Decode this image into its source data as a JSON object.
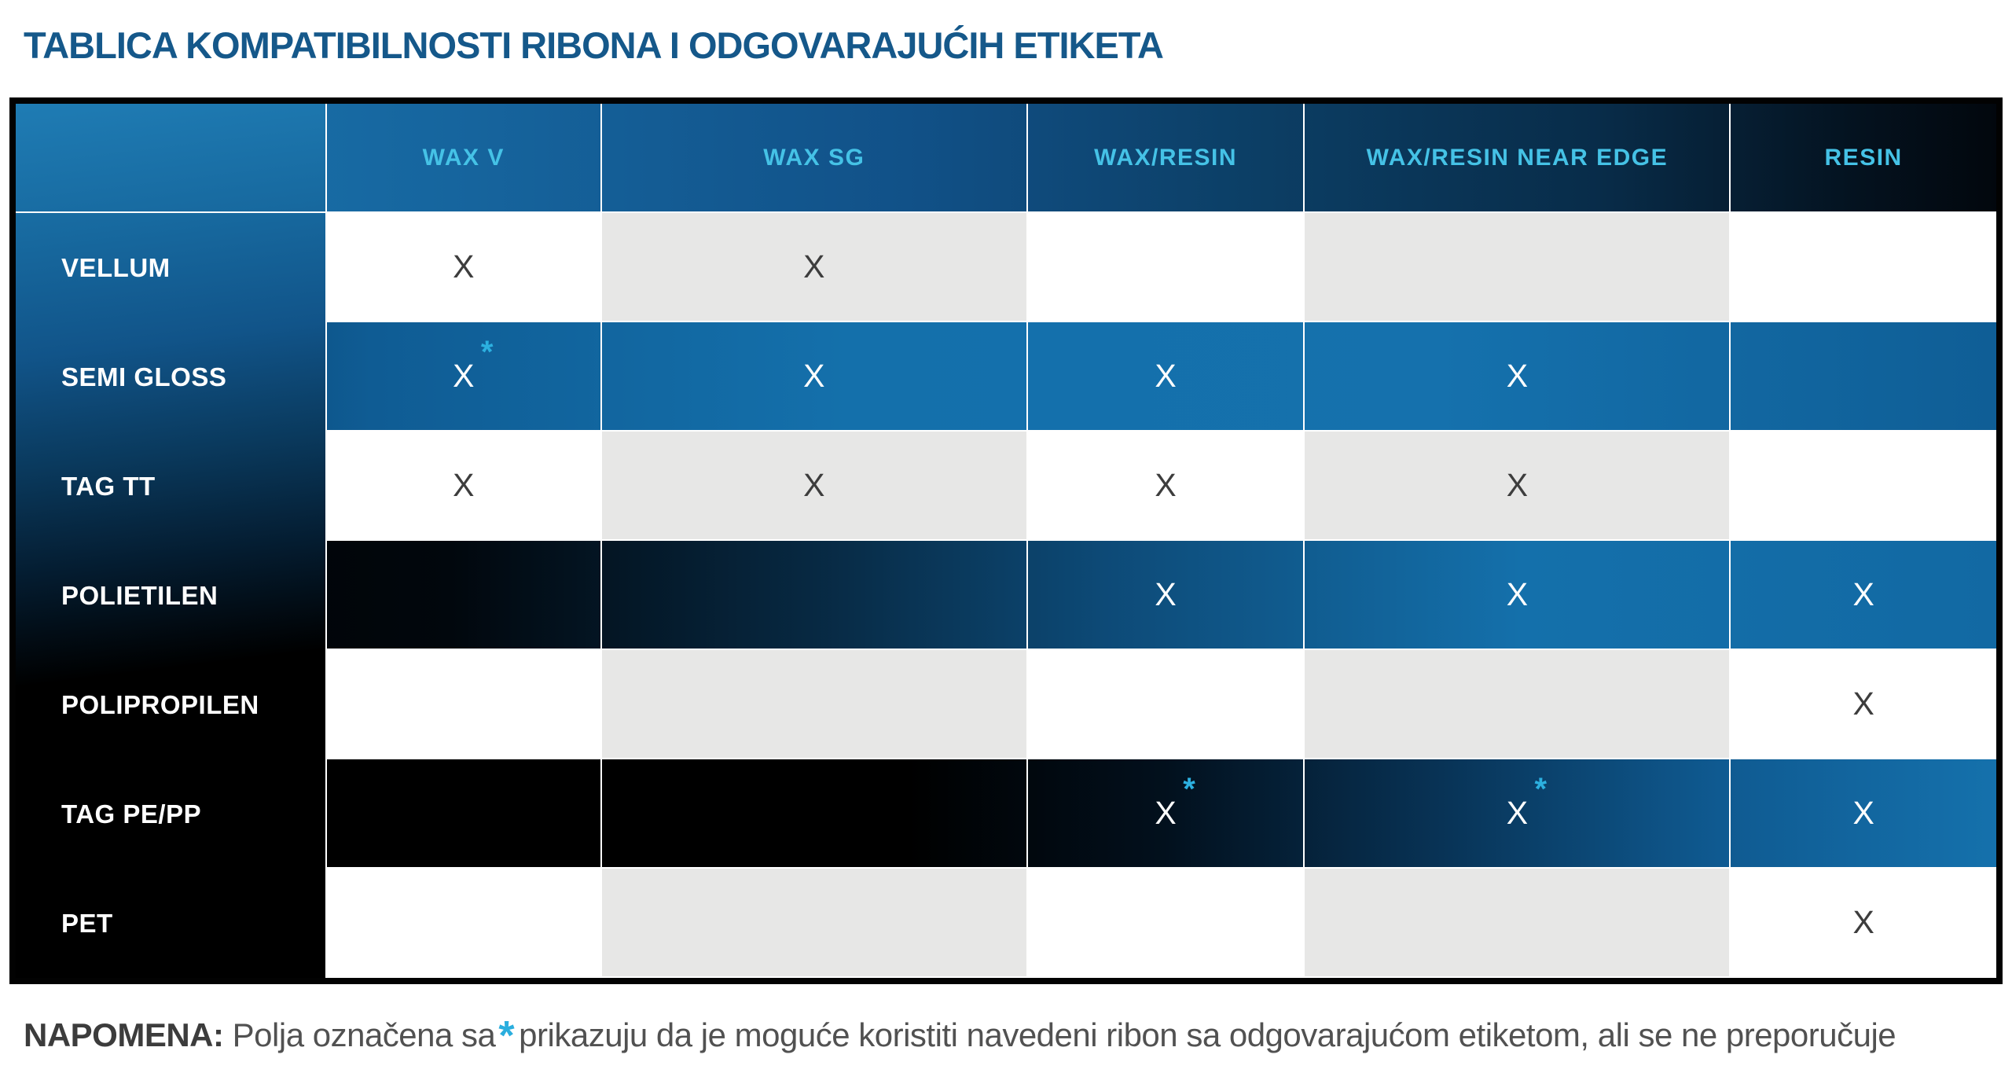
{
  "page": {
    "title": "TABLICA KOMPATIBILNOSTI RIBONA I ODGOVARAJUĆIH ETIKETA"
  },
  "table": {
    "columns": [
      "WAX V",
      "WAX SG",
      "WAX/RESIN",
      "WAX/RESIN NEAR EDGE",
      "RESIN"
    ],
    "rows": [
      {
        "label": "VELLUM",
        "theme": "light",
        "cells": [
          "X",
          "X",
          "",
          "",
          ""
        ]
      },
      {
        "label": "SEMI GLOSS",
        "theme": "blue",
        "cells": [
          "X*",
          "X",
          "X",
          "X",
          ""
        ]
      },
      {
        "label": "TAG TT",
        "theme": "light",
        "cells": [
          "X",
          "X",
          "X",
          "X",
          ""
        ]
      },
      {
        "label": "POLIETILEN",
        "theme": "dark",
        "cells": [
          "",
          "",
          "X",
          "X",
          "X"
        ]
      },
      {
        "label": "POLIPROPILEN",
        "theme": "light",
        "cells": [
          "",
          "",
          "",
          "",
          "X"
        ]
      },
      {
        "label": "TAG PE/PP",
        "theme": "dark",
        "cells": [
          "",
          "",
          "X*",
          "X*",
          "X"
        ]
      },
      {
        "label": "PET",
        "theme": "light",
        "cells": [
          "",
          "",
          "",
          "",
          "X"
        ]
      }
    ],
    "mark_glyph": "X",
    "asterisk_glyph": "*"
  },
  "note": {
    "label": "NAPOMENA:",
    "before": "Polja označena sa",
    "asterisk": "*",
    "after": "prikazuju da je moguće koristiti navedeni ribon sa odgovarajućom etiketom, ali se ne preporučuje"
  },
  "colors": {
    "title_blue": "#15588a",
    "header_text_cyan": "#45c2e6",
    "asterisk_cyan": "#2cb0e0",
    "bright_blue": "#1470ab",
    "dark_blue": "#0a3c64",
    "black": "#000000",
    "light_gray_cell": "#e7e7e6",
    "white_cell": "#ffffff",
    "x_dark": "#3d3d3d",
    "x_light": "#ffffff",
    "note_text_gray": "#515151"
  }
}
